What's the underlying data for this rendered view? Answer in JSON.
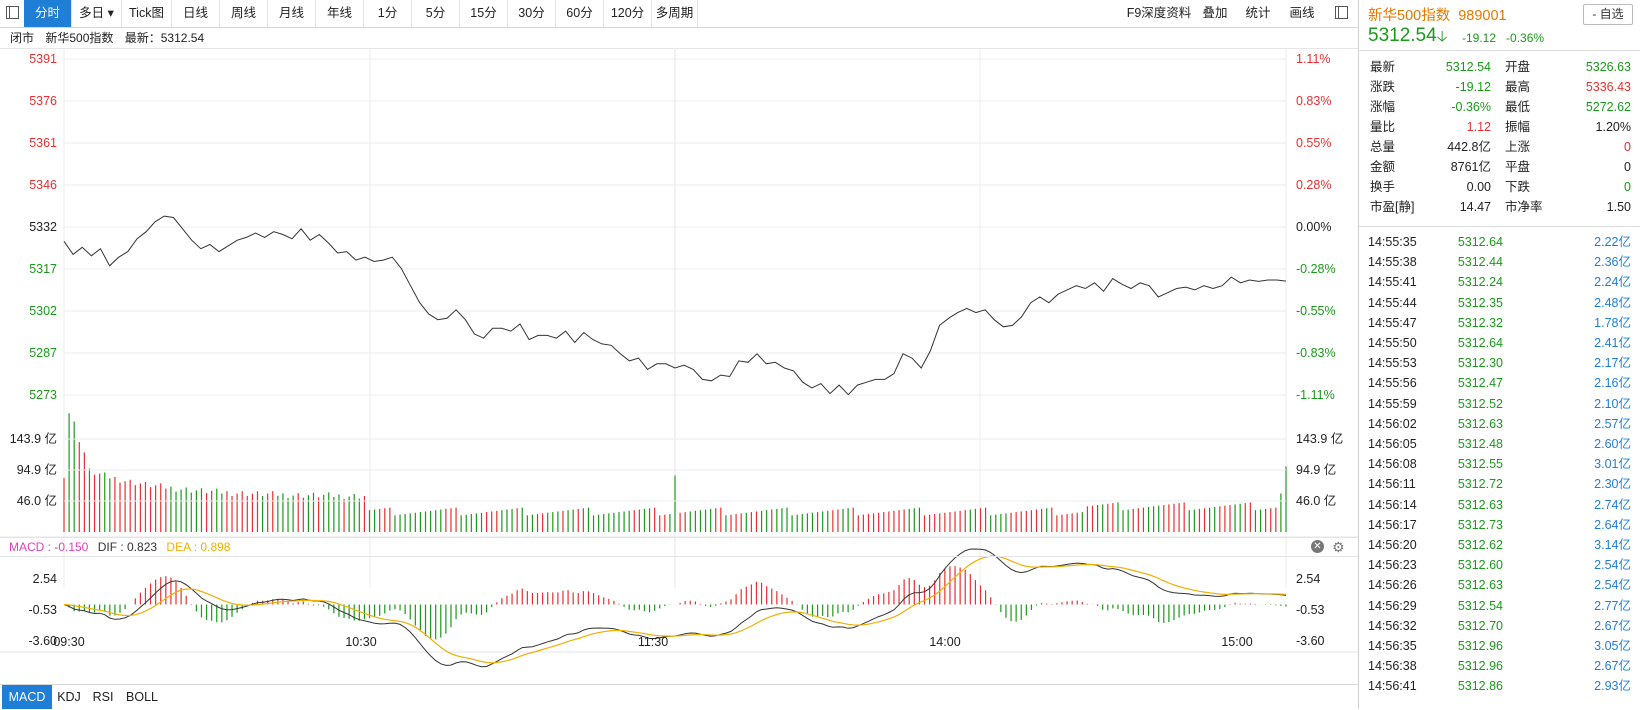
{
  "toolbar": {
    "items": [
      {
        "label": "分时",
        "active": true
      },
      {
        "label": "多日 ▾"
      },
      {
        "label": "Tick图"
      },
      {
        "label": "日线"
      },
      {
        "label": "周线"
      },
      {
        "label": "月线"
      },
      {
        "label": "年线"
      },
      {
        "label": "1分"
      },
      {
        "label": "5分"
      },
      {
        "label": "15分"
      },
      {
        "label": "30分"
      },
      {
        "label": "60分"
      },
      {
        "label": "120分"
      },
      {
        "label": "多周期"
      }
    ],
    "right_items": [
      {
        "label": "F9深度资料"
      },
      {
        "label": "叠加"
      },
      {
        "label": "统计"
      },
      {
        "label": "画线"
      }
    ]
  },
  "infobar": {
    "status": "闭市",
    "name": "新华500指数",
    "latest_label": "最新：",
    "latest_value": "5312.54"
  },
  "panel": {
    "title": "新华500指数",
    "code": "989001",
    "fav_label": "- 自选",
    "price": "5312.54",
    "arrow": "🡣",
    "change": "-19.12",
    "change_pct": "-0.36%",
    "quotes": [
      {
        "l1": "最新",
        "v1": "5312.54",
        "c1": "green",
        "l2": "开盘",
        "v2": "5326.63",
        "c2": "green"
      },
      {
        "l1": "涨跌",
        "v1": "-19.12",
        "c1": "green",
        "l2": "最高",
        "v2": "5336.43",
        "c2": "red"
      },
      {
        "l1": "涨幅",
        "v1": "-0.36%",
        "c1": "green",
        "l2": "最低",
        "v2": "5272.62",
        "c2": "green"
      },
      {
        "l1": "量比",
        "v1": "1.12",
        "c1": "red",
        "l2": "振幅",
        "v2": "1.20%",
        "c2": "grey"
      },
      {
        "l1": "总量",
        "v1": "442.8亿",
        "c1": "grey",
        "l2": "上涨",
        "v2": "0",
        "c2": "red"
      },
      {
        "l1": "金额",
        "v1": "8761亿",
        "c1": "grey",
        "l2": "平盘",
        "v2": "0",
        "c2": "grey"
      },
      {
        "l1": "换手",
        "v1": "0.00",
        "c1": "grey",
        "l2": "下跌",
        "v2": "0",
        "c2": "green"
      },
      {
        "l1": "市盈[静]",
        "v1": "14.47",
        "c1": "grey",
        "l2": "市净率",
        "v2": "1.50",
        "c2": "grey"
      }
    ],
    "ticks": [
      {
        "time": "14:55:35",
        "price": "5312.64",
        "vol": "2.22亿"
      },
      {
        "time": "14:55:38",
        "price": "5312.44",
        "vol": "2.36亿"
      },
      {
        "time": "14:55:41",
        "price": "5312.24",
        "vol": "2.24亿"
      },
      {
        "time": "14:55:44",
        "price": "5312.35",
        "vol": "2.48亿"
      },
      {
        "time": "14:55:47",
        "price": "5312.32",
        "vol": "1.78亿"
      },
      {
        "time": "14:55:50",
        "price": "5312.64",
        "vol": "2.41亿"
      },
      {
        "time": "14:55:53",
        "price": "5312.30",
        "vol": "2.17亿"
      },
      {
        "time": "14:55:56",
        "price": "5312.47",
        "vol": "2.16亿"
      },
      {
        "time": "14:55:59",
        "price": "5312.52",
        "vol": "2.10亿"
      },
      {
        "time": "14:56:02",
        "price": "5312.63",
        "vol": "2.57亿"
      },
      {
        "time": "14:56:05",
        "price": "5312.48",
        "vol": "2.60亿"
      },
      {
        "time": "14:56:08",
        "price": "5312.55",
        "vol": "3.01亿"
      },
      {
        "time": "14:56:11",
        "price": "5312.72",
        "vol": "2.30亿"
      },
      {
        "time": "14:56:14",
        "price": "5312.63",
        "vol": "2.74亿"
      },
      {
        "time": "14:56:17",
        "price": "5312.73",
        "vol": "2.64亿"
      },
      {
        "time": "14:56:20",
        "price": "5312.62",
        "vol": "3.14亿"
      },
      {
        "time": "14:56:23",
        "price": "5312.60",
        "vol": "2.54亿"
      },
      {
        "time": "14:56:26",
        "price": "5312.63",
        "vol": "2.54亿"
      },
      {
        "time": "14:56:29",
        "price": "5312.54",
        "vol": "2.77亿"
      },
      {
        "time": "14:56:32",
        "price": "5312.70",
        "vol": "2.67亿"
      },
      {
        "time": "14:56:35",
        "price": "5312.96",
        "vol": "3.05亿"
      },
      {
        "time": "14:56:38",
        "price": "5312.96",
        "vol": "2.67亿"
      },
      {
        "time": "14:56:41",
        "price": "5312.86",
        "vol": "2.93亿"
      }
    ]
  },
  "macd_bar": {
    "macd_label": "MACD : -0.150",
    "dif_label": "DIF : 0.823",
    "dea_label": "DEA : 0.898"
  },
  "indicator_tabs": [
    {
      "label": "MACD",
      "active": true
    },
    {
      "label": "KDJ"
    },
    {
      "label": "RSI"
    },
    {
      "label": "BOLL"
    }
  ],
  "colors": {
    "up": "#e83030",
    "down": "#1a9a1a",
    "accent": "#1f7ed6",
    "macd": "#e040c0",
    "dea": "#f0b000"
  },
  "chart_data": {
    "type": "line",
    "prev_close": 5331.66,
    "price_axis_left": [
      "5391",
      "5376",
      "5361",
      "5346",
      "5332",
      "5317",
      "5302",
      "5287",
      "5273"
    ],
    "price_axis_right": [
      "1.11%",
      "0.83%",
      "0.55%",
      "0.28%",
      "0.00%",
      "-0.28%",
      "-0.55%",
      "-0.83%",
      "-1.11%"
    ],
    "ylim": [
      5272.5,
      5390.8
    ],
    "volume_axis": [
      "143.9 亿",
      "94.9 亿",
      "46.0 亿"
    ],
    "volume_ylim": [
      0,
      190
    ],
    "macd_axis": [
      "2.54",
      "-0.53",
      "-3.60"
    ],
    "macd_ylim": [
      -4.8,
      4.6
    ],
    "time_labels": [
      "09:30",
      "10:30",
      "11:30",
      "14:00",
      "15:00"
    ],
    "total_minutes": 241,
    "price_keypoints": [
      [
        0,
        5326.6
      ],
      [
        4,
        5322.0
      ],
      [
        8,
        5324.5
      ],
      [
        12,
        5321.5
      ],
      [
        16,
        5324.0
      ],
      [
        20,
        5318.0
      ],
      [
        24,
        5321.0
      ],
      [
        28,
        5323.0
      ],
      [
        32,
        5327.5
      ],
      [
        36,
        5330.0
      ],
      [
        40,
        5333.5
      ],
      [
        44,
        5335.5
      ],
      [
        48,
        5335.0
      ],
      [
        52,
        5331.0
      ],
      [
        56,
        5327.0
      ],
      [
        60,
        5324.0
      ],
      [
        64,
        5325.5
      ],
      [
        68,
        5323.0
      ],
      [
        72,
        5325.0
      ],
      [
        76,
        5327.0
      ],
      [
        80,
        5328.0
      ],
      [
        84,
        5329.5
      ],
      [
        88,
        5328.0
      ],
      [
        92,
        5330.0
      ],
      [
        96,
        5329.0
      ],
      [
        100,
        5327.5
      ],
      [
        104,
        5331.0
      ],
      [
        108,
        5327.0
      ],
      [
        112,
        5329.0
      ],
      [
        116,
        5326.0
      ],
      [
        120,
        5322.5
      ],
      [
        124,
        5323.0
      ],
      [
        128,
        5320.0
      ],
      [
        132,
        5321.0
      ],
      [
        136,
        5319.5
      ],
      [
        140,
        5320.0
      ],
      [
        144,
        5321.0
      ],
      [
        148,
        5317.0
      ],
      [
        152,
        5311.0
      ],
      [
        156,
        5305.0
      ],
      [
        160,
        5301.0
      ],
      [
        164,
        5299.0
      ],
      [
        168,
        5299.5
      ],
      [
        172,
        5302.5
      ],
      [
        176,
        5299.0
      ],
      [
        180,
        5294.0
      ],
      [
        184,
        5292.5
      ],
      [
        188,
        5296.0
      ],
      [
        192,
        5296.0
      ],
      [
        196,
        5295.0
      ],
      [
        200,
        5297.5
      ],
      [
        204,
        5292.0
      ],
      [
        208,
        5293.5
      ],
      [
        212,
        5293.5
      ],
      [
        216,
        5292.5
      ],
      [
        220,
        5295.0
      ],
      [
        224,
        5291.0
      ],
      [
        228,
        5294.5
      ],
      [
        232,
        5292.0
      ],
      [
        236,
        5290.5
      ],
      [
        240,
        5290.0
      ],
      [
        244,
        5287.0
      ],
      [
        248,
        5284.5
      ],
      [
        252,
        5285.5
      ],
      [
        256,
        5281.5
      ],
      [
        260,
        5283.5
      ],
      [
        264,
        5283.5
      ],
      [
        268,
        5282.0
      ],
      [
        272,
        5283.0
      ],
      [
        276,
        5281.5
      ],
      [
        280,
        5278.0
      ],
      [
        284,
        5277.5
      ],
      [
        288,
        5279.5
      ],
      [
        292,
        5279.0
      ],
      [
        296,
        5284.5
      ],
      [
        300,
        5284.0
      ],
      [
        304,
        5287.0
      ],
      [
        308,
        5283.5
      ],
      [
        312,
        5284.0
      ],
      [
        316,
        5282.0
      ],
      [
        320,
        5281.0
      ],
      [
        324,
        5277.0
      ],
      [
        328,
        5275.0
      ],
      [
        332,
        5276.5
      ],
      [
        336,
        5273.0
      ],
      [
        340,
        5276.0
      ],
      [
        344,
        5272.6
      ],
      [
        348,
        5276.0
      ],
      [
        352,
        5277.0
      ],
      [
        356,
        5278.0
      ],
      [
        360,
        5278.0
      ],
      [
        364,
        5280.0
      ],
      [
        368,
        5287.0
      ],
      [
        372,
        5285.5
      ],
      [
        376,
        5282.0
      ],
      [
        380,
        5288.0
      ],
      [
        384,
        5297.0
      ],
      [
        388,
        5299.5
      ],
      [
        392,
        5301.5
      ],
      [
        396,
        5303.0
      ],
      [
        400,
        5301.5
      ],
      [
        404,
        5302.5
      ],
      [
        408,
        5299.0
      ],
      [
        412,
        5296.5
      ],
      [
        416,
        5297.0
      ],
      [
        420,
        5300.0
      ],
      [
        424,
        5305.0
      ],
      [
        428,
        5307.0
      ],
      [
        432,
        5305.0
      ],
      [
        436,
        5308.0
      ],
      [
        440,
        5309.5
      ],
      [
        444,
        5311.0
      ],
      [
        448,
        5310.0
      ],
      [
        452,
        5312.0
      ],
      [
        456,
        5309.0
      ],
      [
        460,
        5313.5
      ],
      [
        464,
        5311.5
      ],
      [
        468,
        5310.0
      ],
      [
        472,
        5312.0
      ],
      [
        476,
        5311.0
      ],
      [
        480,
        5307.0
      ],
      [
        484,
        5308.5
      ],
      [
        488,
        5310.0
      ],
      [
        492,
        5310.5
      ],
      [
        496,
        5309.5
      ],
      [
        500,
        5311.0
      ],
      [
        504,
        5310.0
      ],
      [
        508,
        5311.0
      ],
      [
        512,
        5314.0
      ],
      [
        516,
        5312.0
      ],
      [
        520,
        5313.0
      ],
      [
        524,
        5312.5
      ],
      [
        528,
        5313.0
      ],
      [
        532,
        5313.0
      ],
      [
        536,
        5312.6
      ]
    ]
  }
}
